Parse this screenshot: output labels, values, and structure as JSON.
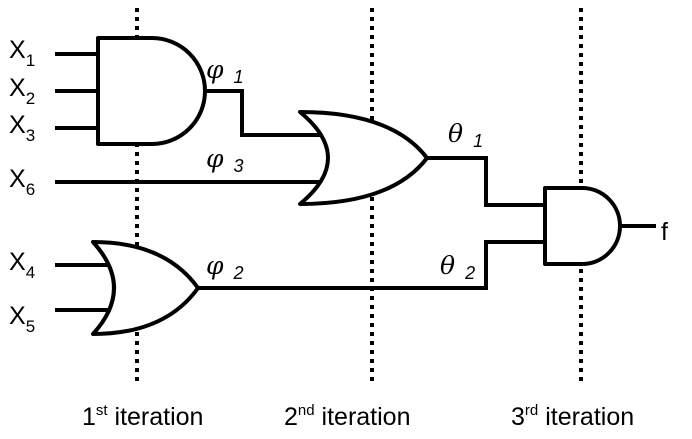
{
  "inputs": {
    "x1": {
      "base": "X",
      "sub": "1"
    },
    "x2": {
      "base": "X",
      "sub": "2"
    },
    "x3": {
      "base": "X",
      "sub": "3"
    },
    "x4": {
      "base": "X",
      "sub": "4"
    },
    "x5": {
      "base": "X",
      "sub": "5"
    },
    "x6": {
      "base": "X",
      "sub": "6"
    }
  },
  "signals": {
    "phi1": {
      "symbol": "φ",
      "sub": "1"
    },
    "phi2": {
      "symbol": "φ",
      "sub": "2"
    },
    "phi3": {
      "symbol": "φ",
      "sub": "3"
    },
    "theta1": {
      "symbol": "θ",
      "sub": "1"
    },
    "theta2": {
      "symbol": "θ",
      "sub": "2"
    }
  },
  "output": {
    "label": "f"
  },
  "iterations": [
    {
      "num": "1",
      "suffix": "st",
      "word": " iteration"
    },
    {
      "num": "2",
      "suffix": "nd",
      "word": " iteration"
    },
    {
      "num": "3",
      "suffix": "rd",
      "word": " iteration"
    }
  ]
}
